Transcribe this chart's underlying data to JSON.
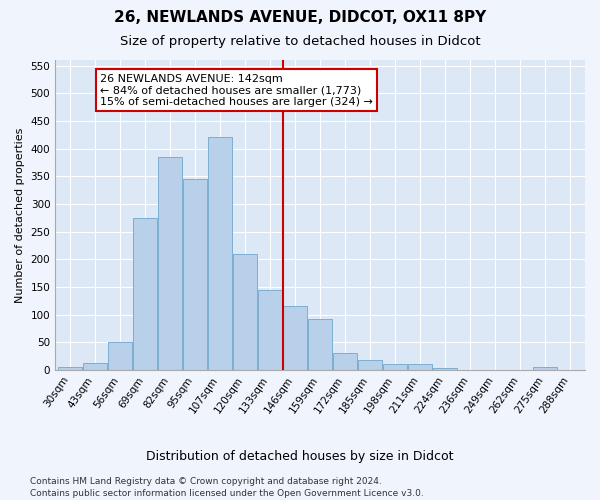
{
  "title1": "26, NEWLANDS AVENUE, DIDCOT, OX11 8PY",
  "title2": "Size of property relative to detached houses in Didcot",
  "xlabel": "Distribution of detached houses by size in Didcot",
  "ylabel": "Number of detached properties",
  "categories": [
    "30sqm",
    "43sqm",
    "56sqm",
    "69sqm",
    "82sqm",
    "95sqm",
    "107sqm",
    "120sqm",
    "133sqm",
    "146sqm",
    "159sqm",
    "172sqm",
    "185sqm",
    "198sqm",
    "211sqm",
    "224sqm",
    "236sqm",
    "249sqm",
    "262sqm",
    "275sqm",
    "288sqm"
  ],
  "values": [
    5,
    12,
    50,
    275,
    385,
    345,
    420,
    210,
    145,
    115,
    92,
    30,
    17,
    10,
    10,
    3,
    0,
    0,
    0,
    5,
    0
  ],
  "bar_color": "#b8d0ea",
  "bar_edge_color": "#7aaed0",
  "vline_x_idx": 8.5,
  "vline_color": "#cc0000",
  "annotation_title": "26 NEWLANDS AVENUE: 142sqm",
  "annotation_line1": "← 84% of detached houses are smaller (1,773)",
  "annotation_line2": "15% of semi-detached houses are larger (324) →",
  "annotation_box_color": "#cc0000",
  "annotation_bg": "#ffffff",
  "ylim": [
    0,
    560
  ],
  "yticks": [
    0,
    50,
    100,
    150,
    200,
    250,
    300,
    350,
    400,
    450,
    500,
    550
  ],
  "bg_color": "#dce8f5",
  "fig_bg_color": "#f0f4fc",
  "footer1": "Contains HM Land Registry data © Crown copyright and database right 2024.",
  "footer2": "Contains public sector information licensed under the Open Government Licence v3.0.",
  "title1_fontsize": 11,
  "title2_fontsize": 9.5,
  "xlabel_fontsize": 9,
  "ylabel_fontsize": 8,
  "tick_fontsize": 7.5,
  "annotation_fontsize": 8,
  "footer_fontsize": 6.5
}
